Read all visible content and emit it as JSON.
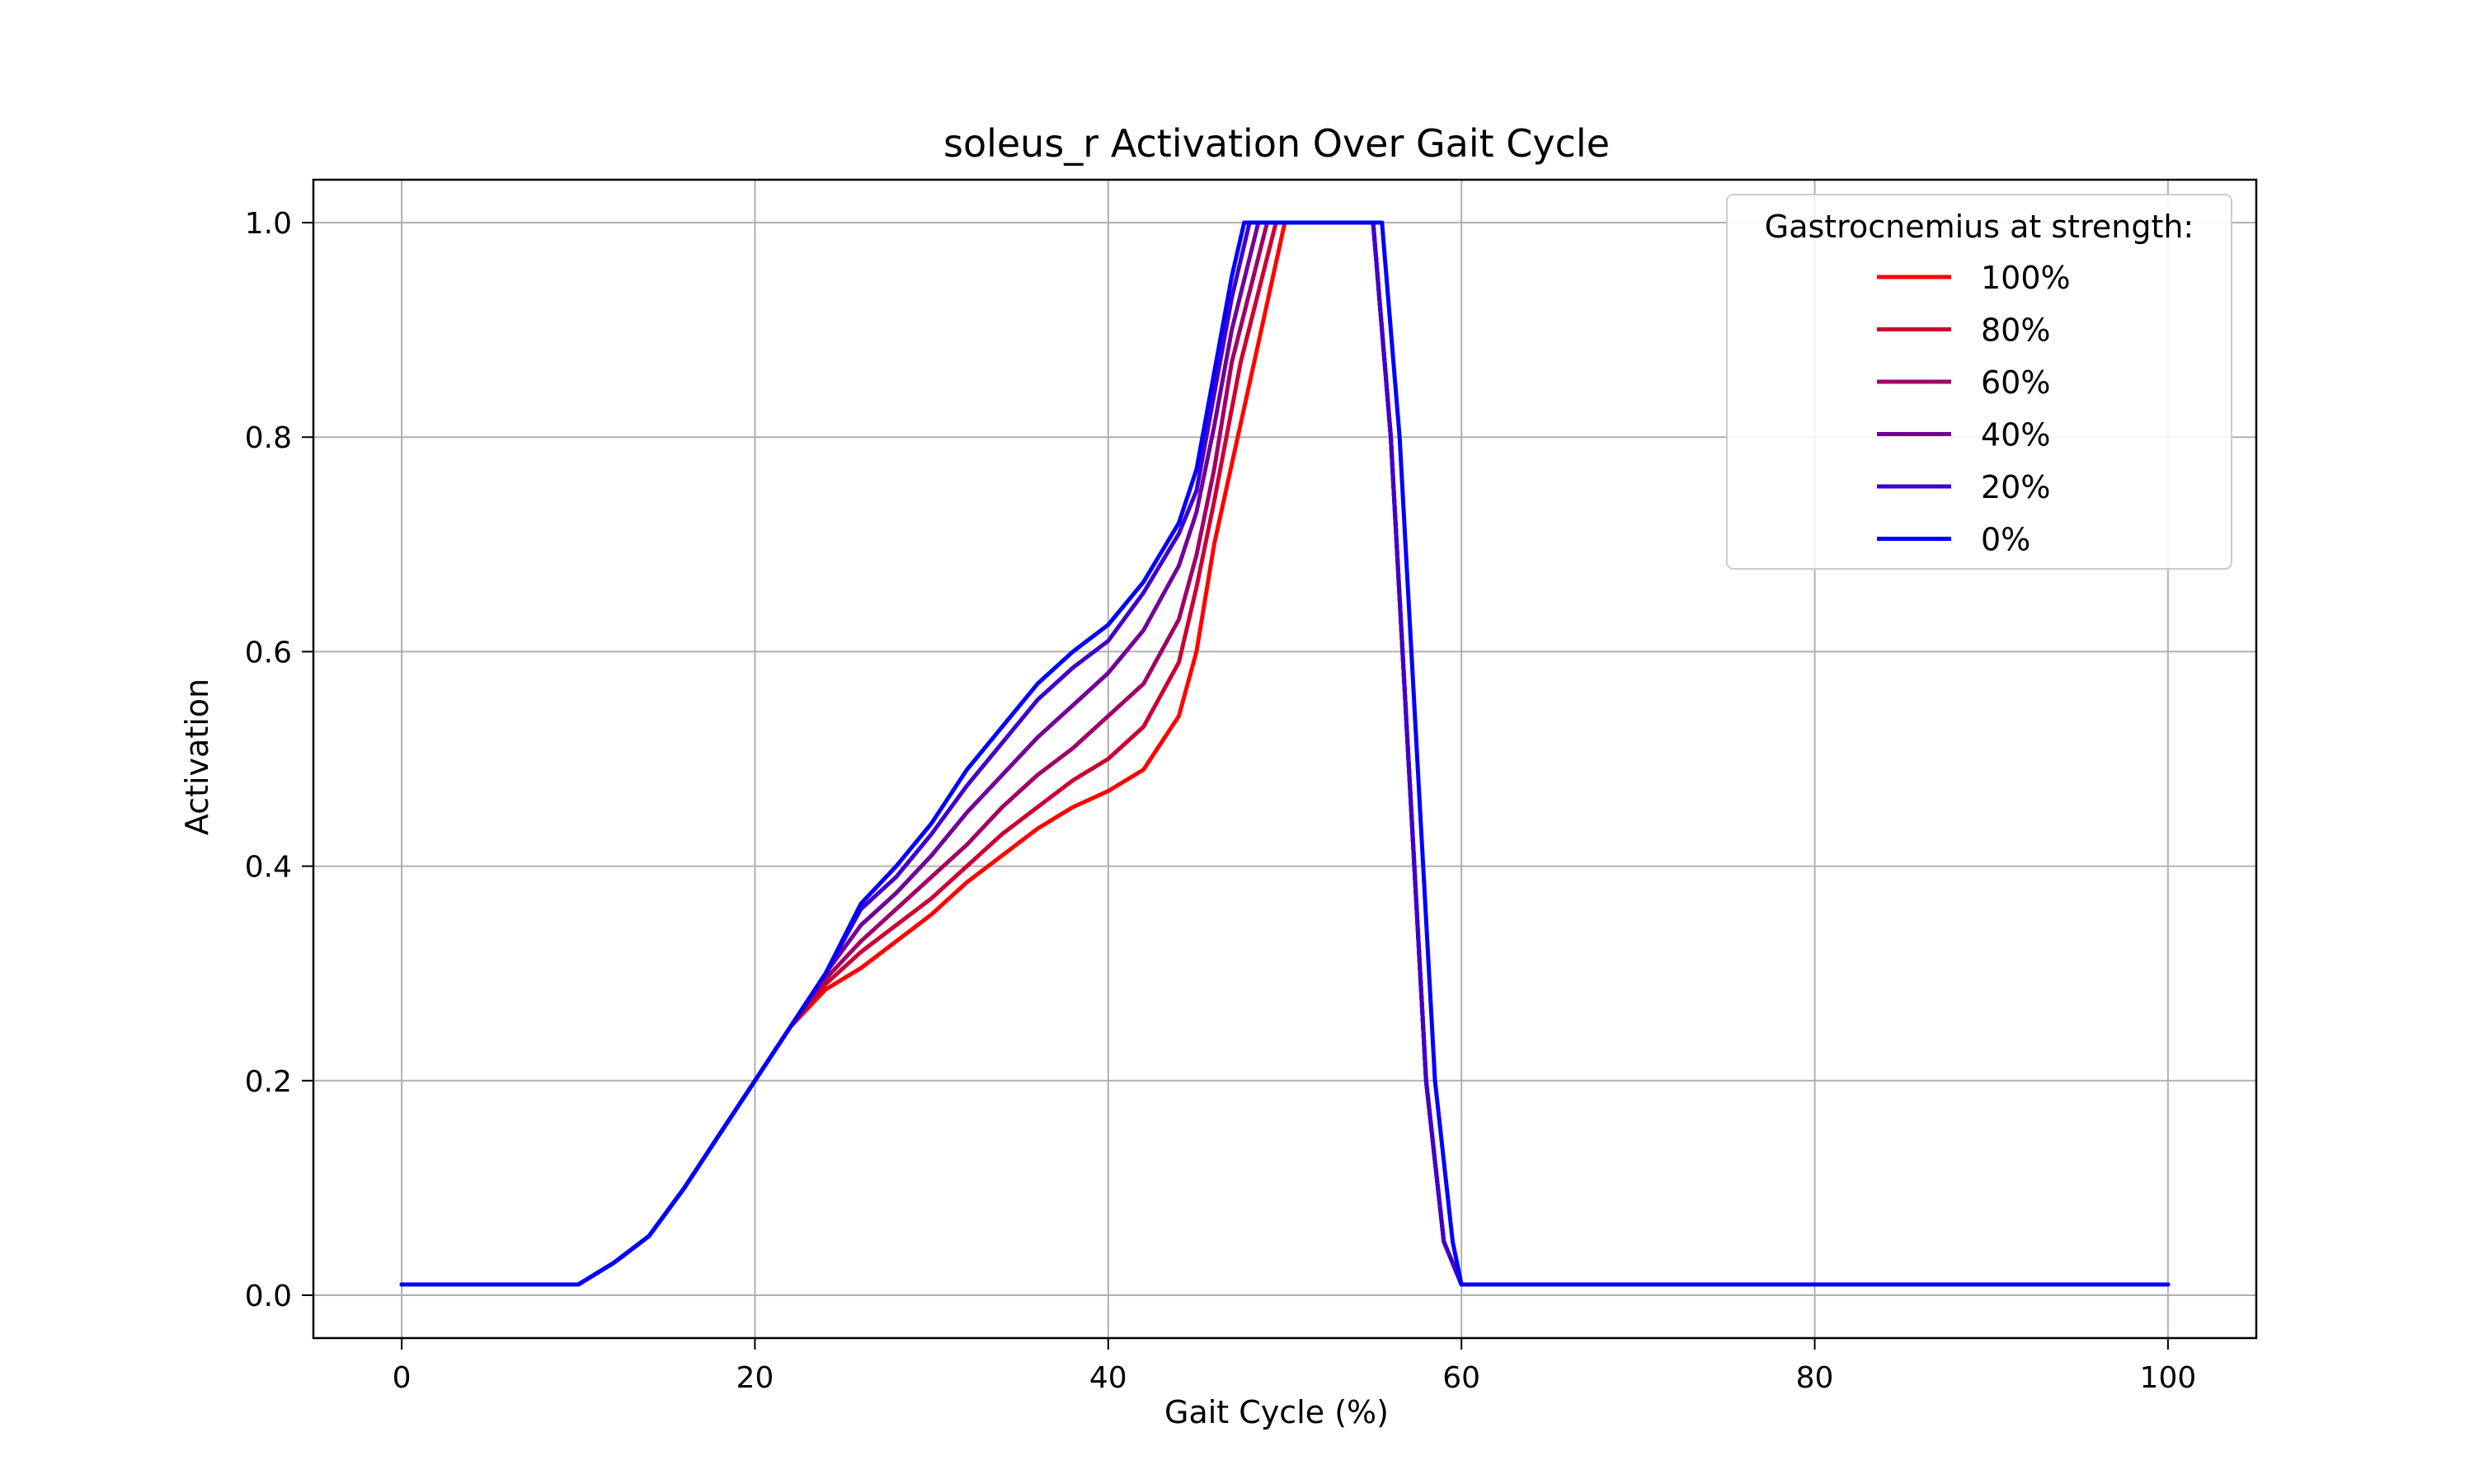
{
  "chart_data": {
    "type": "line",
    "title": "soleus_r Activation Over Gait Cycle",
    "xlabel": "Gait Cycle (%)",
    "ylabel": "Activation",
    "xlim": [
      -5,
      105
    ],
    "ylim": [
      -0.04,
      1.04
    ],
    "xticks": [
      0,
      20,
      40,
      60,
      80,
      100
    ],
    "yticks": [
      0.0,
      0.2,
      0.4,
      0.6,
      0.8,
      1.0
    ],
    "xtick_labels": [
      "0",
      "20",
      "40",
      "60",
      "80",
      "100"
    ],
    "ytick_labels": [
      "0.0",
      "0.2",
      "0.4",
      "0.6",
      "0.8",
      "1.0"
    ],
    "grid": true,
    "legend": {
      "title": "Gastrocnemius at strength:",
      "placement": "top-right"
    },
    "series": [
      {
        "name": "100%",
        "color": "#ff0000",
        "x": [
          0,
          10,
          12,
          14,
          16,
          18,
          20,
          22,
          24,
          26,
          28,
          30,
          32,
          34,
          36,
          38,
          40,
          42,
          44,
          45,
          46,
          48,
          50,
          55,
          56,
          57,
          58,
          59,
          60,
          100
        ],
        "y": [
          0.01,
          0.01,
          0.03,
          0.055,
          0.1,
          0.15,
          0.2,
          0.25,
          0.285,
          0.305,
          0.33,
          0.355,
          0.385,
          0.41,
          0.435,
          0.455,
          0.47,
          0.49,
          0.54,
          0.6,
          0.7,
          0.85,
          1.0,
          1.0,
          0.8,
          0.5,
          0.2,
          0.05,
          0.01,
          0.01
        ]
      },
      {
        "name": "80%",
        "color": "#cc0033",
        "x": [
          0,
          10,
          12,
          14,
          16,
          18,
          20,
          22,
          24,
          26,
          28,
          30,
          32,
          34,
          36,
          38,
          40,
          42,
          44,
          45,
          46,
          47.5,
          49.5,
          55,
          56,
          57,
          58,
          59,
          60,
          100
        ],
        "y": [
          0.01,
          0.01,
          0.03,
          0.055,
          0.1,
          0.15,
          0.2,
          0.25,
          0.29,
          0.32,
          0.345,
          0.37,
          0.4,
          0.43,
          0.455,
          0.48,
          0.5,
          0.53,
          0.59,
          0.66,
          0.74,
          0.87,
          1.0,
          1.0,
          0.8,
          0.5,
          0.2,
          0.05,
          0.01,
          0.01
        ]
      },
      {
        "name": "60%",
        "color": "#a00066",
        "x": [
          0,
          10,
          12,
          14,
          16,
          18,
          20,
          22,
          24,
          26,
          28,
          30,
          32,
          34,
          36,
          38,
          40,
          42,
          44,
          45,
          46,
          47,
          49,
          55,
          56,
          57,
          58,
          59,
          60,
          100
        ],
        "y": [
          0.01,
          0.01,
          0.03,
          0.055,
          0.1,
          0.15,
          0.2,
          0.25,
          0.295,
          0.33,
          0.36,
          0.39,
          0.42,
          0.455,
          0.485,
          0.51,
          0.54,
          0.57,
          0.63,
          0.69,
          0.77,
          0.87,
          1.0,
          1.0,
          0.8,
          0.5,
          0.2,
          0.05,
          0.01,
          0.01
        ]
      },
      {
        "name": "40%",
        "color": "#700099",
        "x": [
          0,
          10,
          12,
          14,
          16,
          18,
          20,
          22,
          24,
          26,
          28,
          30,
          32,
          34,
          36,
          38,
          40,
          42,
          44,
          45,
          46,
          47,
          48.5,
          55,
          56,
          57,
          58,
          59,
          60,
          100
        ],
        "y": [
          0.01,
          0.01,
          0.03,
          0.055,
          0.1,
          0.15,
          0.2,
          0.25,
          0.3,
          0.345,
          0.375,
          0.41,
          0.45,
          0.485,
          0.52,
          0.55,
          0.58,
          0.62,
          0.68,
          0.73,
          0.81,
          0.9,
          1.0,
          1.0,
          0.8,
          0.5,
          0.2,
          0.05,
          0.01,
          0.01
        ]
      },
      {
        "name": "20%",
        "color": "#4000cc",
        "x": [
          0,
          10,
          12,
          14,
          16,
          18,
          20,
          22,
          24,
          26,
          28,
          30,
          32,
          34,
          36,
          38,
          40,
          42,
          44,
          45,
          46,
          47,
          48,
          55,
          56,
          57,
          58,
          59,
          60,
          100
        ],
        "y": [
          0.01,
          0.01,
          0.03,
          0.055,
          0.1,
          0.15,
          0.2,
          0.25,
          0.3,
          0.36,
          0.39,
          0.43,
          0.475,
          0.515,
          0.555,
          0.585,
          0.61,
          0.655,
          0.71,
          0.75,
          0.84,
          0.93,
          1.0,
          1.0,
          0.8,
          0.5,
          0.2,
          0.05,
          0.01,
          0.01
        ]
      },
      {
        "name": "0%",
        "color": "#0000ff",
        "x": [
          0,
          10,
          12,
          14,
          16,
          18,
          20,
          22,
          24,
          26,
          28,
          30,
          32,
          34,
          36,
          38,
          40,
          42,
          44,
          45,
          46,
          47,
          47.7,
          55.5,
          56.5,
          57.5,
          58.5,
          59.5,
          60,
          100
        ],
        "y": [
          0.01,
          0.01,
          0.03,
          0.055,
          0.1,
          0.15,
          0.2,
          0.25,
          0.3,
          0.365,
          0.4,
          0.44,
          0.49,
          0.53,
          0.57,
          0.6,
          0.625,
          0.665,
          0.72,
          0.77,
          0.86,
          0.95,
          1.0,
          1.0,
          0.8,
          0.5,
          0.2,
          0.05,
          0.01,
          0.01
        ]
      }
    ]
  }
}
